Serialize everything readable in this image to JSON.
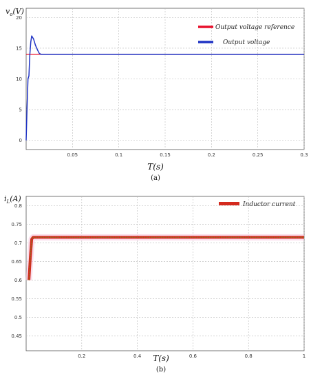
{
  "chart_data": [
    {
      "type": "line",
      "ylabel": "v_o(V)",
      "ylabel_main": "v",
      "ylabel_sub": "o",
      "ylabel_rest": "(V)",
      "xlabel": "T(s)",
      "caption": "(a)",
      "xlim": [
        0,
        0.3
      ],
      "ylim": [
        -1.5,
        21.5
      ],
      "xticks": [
        0.05,
        0.1,
        0.15,
        0.2,
        0.25,
        0.3
      ],
      "xtick_labels": [
        "0.05",
        "0.1",
        "0.15",
        "0.2",
        "0.25",
        "0.3"
      ],
      "yticks": [
        0,
        5,
        10,
        15,
        20
      ],
      "ytick_labels": [
        "0",
        "5",
        "10",
        "15",
        "20"
      ],
      "grid": true,
      "legend_position": "top-right",
      "series": [
        {
          "name": "Output voltage reference",
          "color": "#e8112d",
          "x": [
            0,
            0.3
          ],
          "y": [
            14,
            14
          ]
        },
        {
          "name": "Output voltage",
          "color": "#1f33c4",
          "x": [
            0,
            0.001,
            0.002,
            0.003,
            0.004,
            0.005,
            0.006,
            0.008,
            0.01,
            0.012,
            0.014,
            0.016,
            0.3
          ],
          "y": [
            0,
            5.5,
            10,
            10.5,
            14,
            16,
            17,
            16.5,
            15.5,
            14.8,
            14.2,
            14,
            14
          ]
        }
      ]
    },
    {
      "type": "line",
      "ylabel": "i_L(A)",
      "ylabel_main": "i",
      "ylabel_sub": "L",
      "ylabel_rest": "(A)",
      "xlabel": "T(s)",
      "caption": "(b)",
      "xlim": [
        0,
        1
      ],
      "ylim": [
        0.41,
        0.825
      ],
      "xticks": [
        0.2,
        0.4,
        0.6,
        0.8,
        1
      ],
      "xtick_labels": [
        "0.2",
        "0.4",
        "0.6",
        "0.8",
        "1"
      ],
      "yticks": [
        0.45,
        0.5,
        0.55,
        0.6,
        0.65,
        0.7,
        0.75,
        0.8
      ],
      "ytick_labels": [
        "0.45",
        "0.5",
        "0.55",
        "0.6",
        "0.65",
        "0.7",
        "0.75",
        "0.8"
      ],
      "grid": true,
      "legend_position": "top-right",
      "series": [
        {
          "name": "Inductor current",
          "color": "#d42a1e",
          "x": [
            0.01,
            0.015,
            0.02,
            0.025,
            1
          ],
          "y": [
            0.6,
            0.66,
            0.71,
            0.715,
            0.715
          ]
        }
      ]
    }
  ]
}
